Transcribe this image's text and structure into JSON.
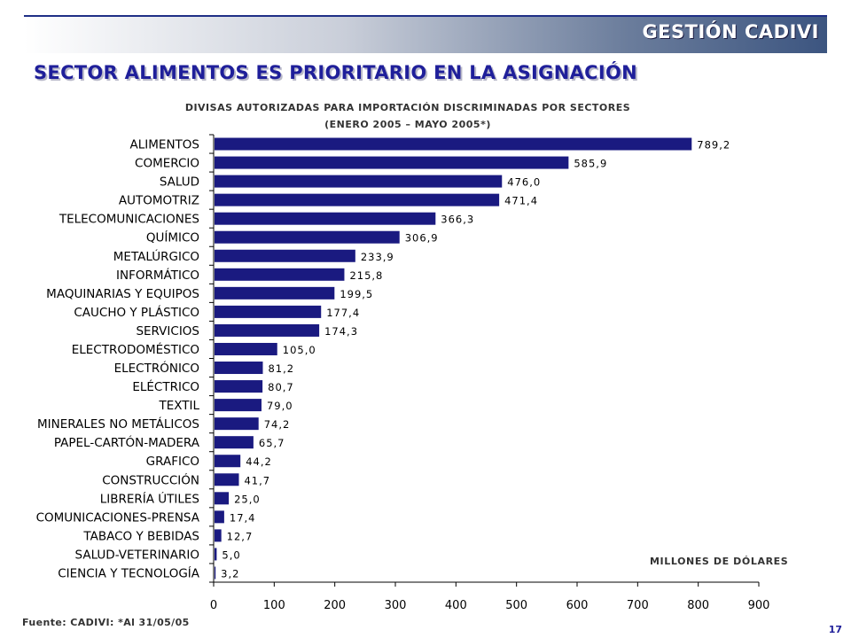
{
  "header": {
    "brand": "GESTIÓN CADIVI"
  },
  "slide": {
    "title": "SECTOR ALIMENTOS ES PRIORITARIO EN LA ASIGNACIÓN",
    "page_number": "17",
    "source": "Fuente: CADIVI: *Al 31/05/05"
  },
  "colors": {
    "bar": "#1a1a80",
    "title": "#1f1f9a"
  },
  "chart_data": {
    "type": "bar",
    "orientation": "horizontal",
    "title": "DIVISAS AUTORIZADAS PARA IMPORTACIÓN DISCRIMINADAS POR SECTORES",
    "subtitle": "(ENERO 2005 – MAYO 2005*)",
    "units_label": "MILLONES DE DÓLARES",
    "categories": [
      "ALIMENTOS",
      "COMERCIO",
      "SALUD",
      "AUTOMOTRIZ",
      "TELECOMUNICACIONES",
      "QUÍMICO",
      "METALÚRGICO",
      "INFORMÁTICO",
      "MAQUINARIAS Y EQUIPOS",
      "CAUCHO Y PLÁSTICO",
      "SERVICIOS",
      "ELECTRODOMÉSTICO",
      "ELECTRÓNICO",
      "ELÉCTRICO",
      "TEXTIL",
      "MINERALES NO METÁLICOS",
      "PAPEL-CARTÓN-MADERA",
      "GRAFICO",
      "CONSTRUCCIÓN",
      "LIBRERÍA ÚTILES",
      "COMUNICACIONES-PRENSA",
      "TABACO Y BEBIDAS",
      "SALUD-VETERINARIO",
      "CIENCIA Y TECNOLOGÍA"
    ],
    "values": [
      789.2,
      585.9,
      476.0,
      471.4,
      366.3,
      306.9,
      233.9,
      215.8,
      199.5,
      177.4,
      174.3,
      105.0,
      81.2,
      80.7,
      79.0,
      74.2,
      65.7,
      44.2,
      41.7,
      25.0,
      17.4,
      12.7,
      5.0,
      3.2
    ],
    "value_labels": [
      "789,2",
      "585,9",
      "476,0",
      "471,4",
      "366,3",
      "306,9",
      "233,9",
      "215,8",
      "199,5",
      "177,4",
      "174,3",
      "105,0",
      "81,2",
      "80,7",
      "79,0",
      "74,2",
      "65,7",
      "44,2",
      "41,7",
      "25,0",
      "17,4",
      "12,7",
      "5,0",
      "3,2"
    ],
    "xlim": [
      0,
      900
    ],
    "xticks": [
      0,
      100,
      200,
      300,
      400,
      500,
      600,
      700,
      800,
      900
    ],
    "xtick_labels": [
      "0",
      "100",
      "200",
      "300",
      "400",
      "500",
      "600",
      "700",
      "800",
      "900"
    ],
    "grid": false,
    "legend": "none"
  }
}
